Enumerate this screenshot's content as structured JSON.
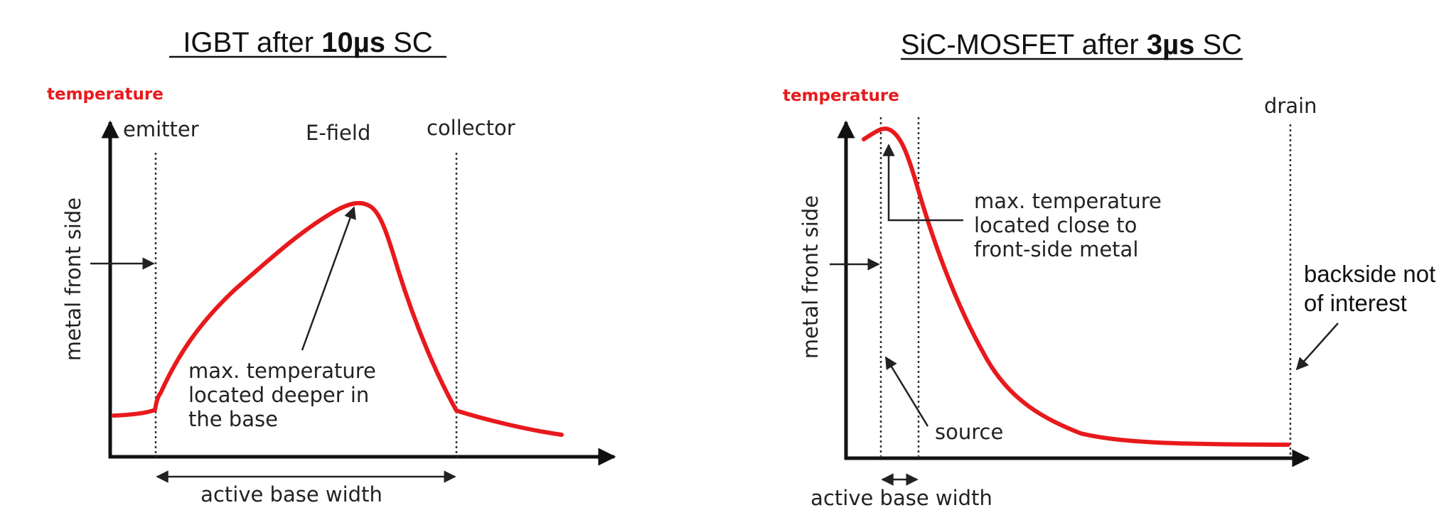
{
  "colors": {
    "curve": "#e8191c",
    "temperature_label": "#e8191c"
  },
  "left": {
    "title_pre": "IGBT after ",
    "title_bold": "10µs",
    "title_post": " SC",
    "y_temperature": "temperature",
    "y_side_label": "metal front side",
    "emitter": "emitter",
    "efield": "E-field",
    "collector": "collector",
    "note": [
      "max. temperature",
      "located deeper in",
      "the base"
    ],
    "active_base_width": "active base width"
  },
  "right": {
    "title_pre": "SiC-MOSFET after ",
    "title_bold": "3µs",
    "title_post": " SC",
    "y_temperature": "temperature",
    "y_side_label": "metal front side",
    "drain": "drain",
    "note": [
      "max. temperature",
      "located close to",
      "front-side metal"
    ],
    "backside": [
      "backside not",
      "of interest"
    ],
    "source": "source",
    "active_base_width": "active base width"
  }
}
